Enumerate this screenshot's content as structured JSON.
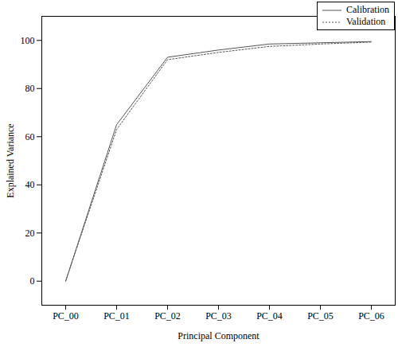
{
  "chart_data": {
    "type": "line",
    "x_label": "Principal Component",
    "y_label": "Explained Variance",
    "categories": [
      "PC_00",
      "PC_01",
      "PC_02",
      "PC_03",
      "PC_04",
      "PC_05",
      "PC_06"
    ],
    "series": [
      {
        "name": "Calibration",
        "color": "#555555",
        "line_style": "solid",
        "values": [
          0,
          65,
          93,
          96,
          98.5,
          99,
          99.5
        ]
      },
      {
        "name": "Validation",
        "color": "#555555",
        "line_style": "dotted",
        "values": [
          0,
          63,
          92,
          95,
          97.5,
          98.5,
          99.3
        ]
      }
    ],
    "ylim": [
      -10,
      110
    ],
    "yticks": [
      0,
      20,
      40,
      60,
      80,
      100
    ],
    "legend": "top-right",
    "grid": false
  }
}
